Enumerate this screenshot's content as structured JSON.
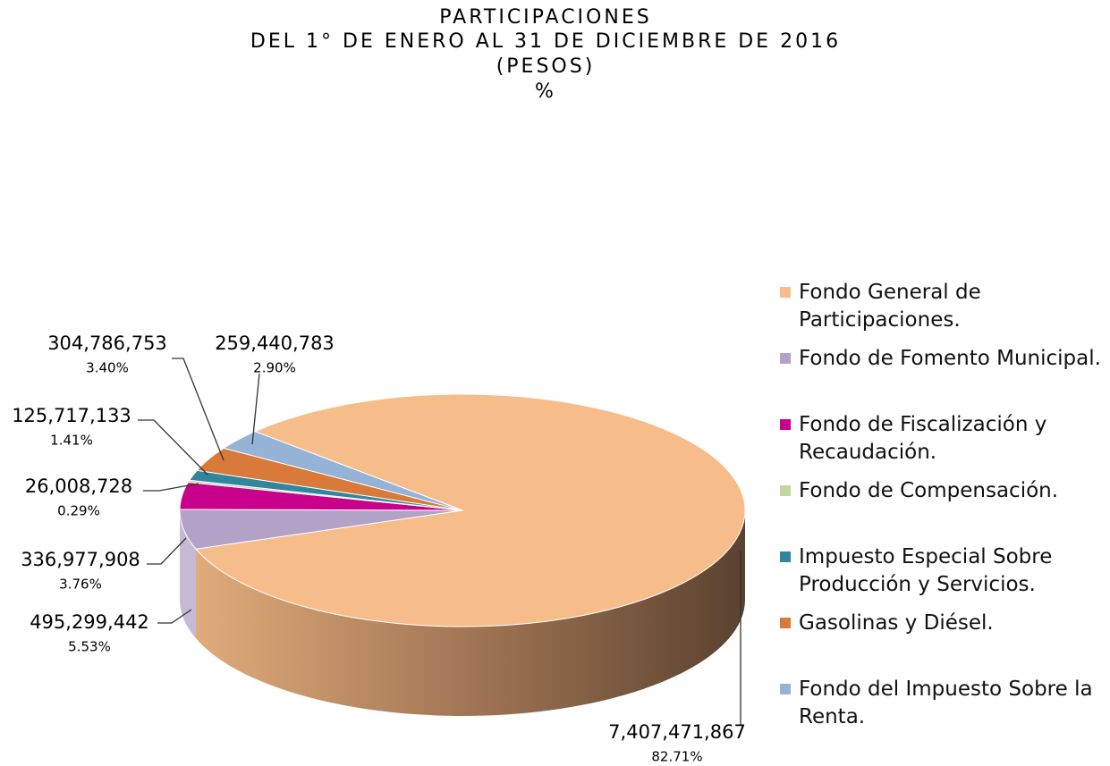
{
  "chart_data": {
    "type": "pie3d",
    "title_lines": [
      "PARTICIPACIONES",
      "DEL 1° DE ENERO AL 31 DE DICIEMBRE DE 2016",
      "(PESOS)",
      "%"
    ],
    "categories": [
      "Fondo General de Participaciones.",
      "Fondo de Fomento Municipal.",
      "Fondo de Fiscalización y Recaudación.",
      "Fondo de Compensación.",
      "Impuesto Especial Sobre Producción y Servicios.",
      "Gasolinas y Diésel.",
      "Fondo del Impuesto Sobre la Renta."
    ],
    "values": [
      7407471867,
      495299442,
      336977908,
      26008728,
      125717133,
      304786753,
      259440783
    ],
    "value_labels": [
      "7,407,471,867",
      "495,299,442",
      "336,977,908",
      "26,008,728",
      "125,717,133",
      "304,786,753",
      "259,440,783"
    ],
    "percents": [
      82.71,
      5.53,
      3.76,
      0.29,
      1.41,
      3.4,
      2.9
    ],
    "percent_labels": [
      "82.71%",
      "5.53%",
      "3.76%",
      "0.29%",
      "1.41%",
      "3.40%",
      "2.90%"
    ],
    "colors": [
      "#f6bd8b",
      "#b3a2c7",
      "#c8008c",
      "#c3d69b",
      "#31859c",
      "#d9793a",
      "#95b3d7"
    ],
    "legend": "right"
  }
}
